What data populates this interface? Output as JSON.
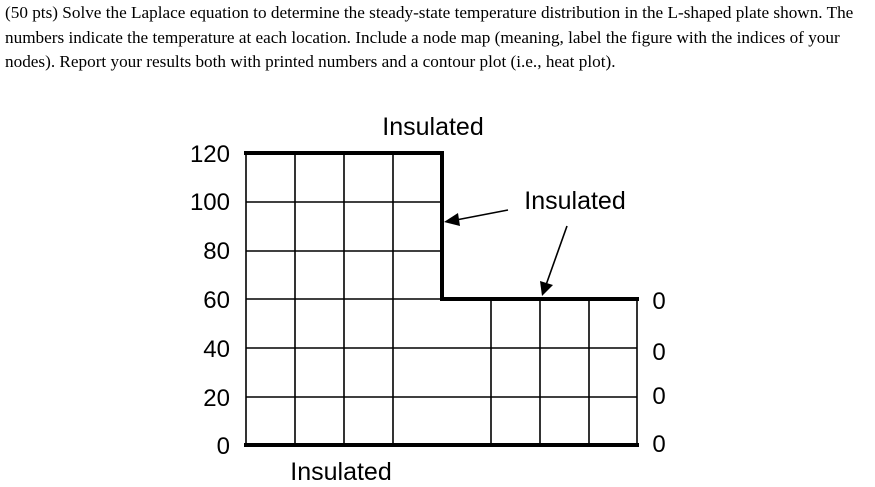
{
  "problem": {
    "text": "(50 pts) Solve the Laplace equation to determine the steady-state temperature distribution in the L-shaped plate shown. The numbers indicate the temperature at each location. Include a node map (meaning, label the figure with the indices of your nodes). Report your results both with printed numbers and a contour plot (i.e., heat plot)."
  },
  "figure": {
    "top_label": "Insulated",
    "right_label": "Insulated",
    "bottom_label": "Insulated",
    "left_values": [
      "120",
      "100",
      "80",
      "60",
      "40",
      "20",
      "0"
    ],
    "right_values": [
      "0",
      "0",
      "0",
      "0"
    ]
  }
}
